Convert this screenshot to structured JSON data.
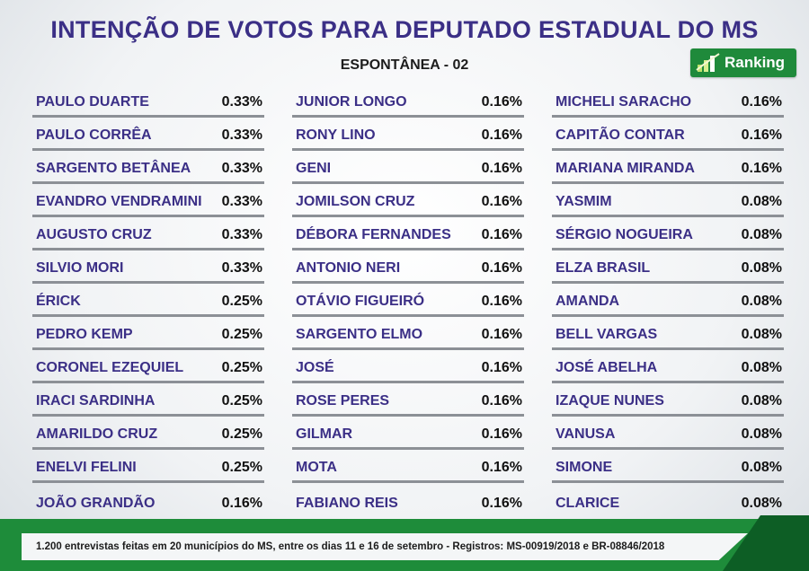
{
  "title": "INTENÇÃO DE VOTOS PARA DEPUTADO ESTADUAL DO MS",
  "subtitle": "ESPONTÂNEA - 02",
  "logo": {
    "text": "Ranking"
  },
  "colors": {
    "heading": "#3b2f86",
    "brand_green": "#1e8c3a",
    "divider": "#8c9096"
  },
  "columns": [
    [
      {
        "name": "PAULO DUARTE",
        "pct": "0.33%"
      },
      {
        "name": "PAULO CORRÊA",
        "pct": "0.33%"
      },
      {
        "name": "SARGENTO BETÂNEA",
        "pct": "0.33%"
      },
      {
        "name": "EVANDRO VENDRAMINI",
        "pct": "0.33%"
      },
      {
        "name": "AUGUSTO CRUZ",
        "pct": "0.33%"
      },
      {
        "name": "SILVIO MORI",
        "pct": "0.33%"
      },
      {
        "name": "ÉRICK",
        "pct": "0.25%"
      },
      {
        "name": "PEDRO KEMP",
        "pct": "0.25%"
      },
      {
        "name": "CORONEL EZEQUIEL",
        "pct": "0.25%"
      },
      {
        "name": "IRACI SARDINHA",
        "pct": "0.25%"
      },
      {
        "name": "AMARILDO CRUZ",
        "pct": "0.25%"
      },
      {
        "name": "ENELVI FELINI",
        "pct": "0.25%"
      },
      {
        "name": "JOÃO GRANDÃO",
        "pct": "0.16%"
      }
    ],
    [
      {
        "name": "JUNIOR LONGO",
        "pct": "0.16%"
      },
      {
        "name": "RONY LINO",
        "pct": "0.16%"
      },
      {
        "name": "GENI",
        "pct": "0.16%"
      },
      {
        "name": "JOMILSON CRUZ",
        "pct": "0.16%"
      },
      {
        "name": "DÉBORA FERNANDES",
        "pct": "0.16%"
      },
      {
        "name": "ANTONIO NERI",
        "pct": "0.16%"
      },
      {
        "name": "OTÁVIO FIGUEIRÓ",
        "pct": "0.16%"
      },
      {
        "name": "SARGENTO ELMO",
        "pct": "0.16%"
      },
      {
        "name": "JOSÉ",
        "pct": "0.16%"
      },
      {
        "name": "ROSE PERES",
        "pct": "0.16%"
      },
      {
        "name": "GILMAR",
        "pct": "0.16%"
      },
      {
        "name": "MOTA",
        "pct": "0.16%"
      },
      {
        "name": "FABIANO REIS",
        "pct": "0.16%"
      }
    ],
    [
      {
        "name": "MICHELI SARACHO",
        "pct": "0.16%"
      },
      {
        "name": "CAPITÃO CONTAR",
        "pct": "0.16%"
      },
      {
        "name": "MARIANA MIRANDA",
        "pct": "0.16%"
      },
      {
        "name": "YASMIM",
        "pct": "0.08%"
      },
      {
        "name": "SÉRGIO NOGUEIRA",
        "pct": "0.08%"
      },
      {
        "name": "ELZA BRASIL",
        "pct": "0.08%"
      },
      {
        "name": "AMANDA",
        "pct": "0.08%"
      },
      {
        "name": "BELL VARGAS",
        "pct": "0.08%"
      },
      {
        "name": "JOSÉ ABELHA",
        "pct": "0.08%"
      },
      {
        "name": "IZAQUE NUNES",
        "pct": "0.08%"
      },
      {
        "name": "VANUSA",
        "pct": "0.08%"
      },
      {
        "name": "SIMONE",
        "pct": "0.08%"
      },
      {
        "name": "CLARICE",
        "pct": "0.08%"
      }
    ]
  ],
  "footer": "1.200 entrevistas feitas em 20 municípios do MS, entre os dias 11 e 16 de setembro - Registros:  MS-00919/2018 e BR-08846/2018"
}
